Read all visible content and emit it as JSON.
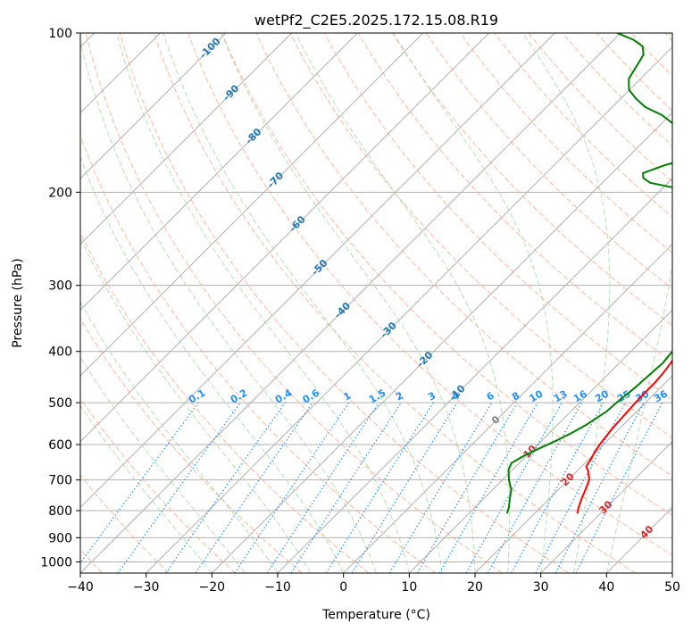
{
  "chart_data": {
    "type": "line",
    "title": "wetPf2_C2E5.2025.172.15.08.R19",
    "xlabel": "Temperature (°C)",
    "ylabel": "Pressure (hPa)",
    "xlim": [
      -40,
      50
    ],
    "ylim": [
      1050,
      100
    ],
    "y_scale": "log",
    "grid": true,
    "x_ticks": [
      "−40",
      "−30",
      "−20",
      "−10",
      "0",
      "10",
      "20",
      "30",
      "40",
      "50"
    ],
    "y_ticks": [
      {
        "p": 100,
        "label": "100"
      },
      {
        "p": 200,
        "label": "200"
      },
      {
        "p": 300,
        "label": "300"
      },
      {
        "p": 400,
        "label": "400"
      },
      {
        "p": 500,
        "label": "500"
      },
      {
        "p": 600,
        "label": "600"
      },
      {
        "p": 700,
        "label": "700"
      },
      {
        "p": 800,
        "label": "800"
      },
      {
        "p": 900,
        "label": "900"
      },
      {
        "p": 1000,
        "label": "1000"
      }
    ],
    "colors": {
      "temperature": "#ff0000",
      "dewpoint": "#008000",
      "isotherm": "#b0b0b0",
      "dry_adiabat": "#ffa07a",
      "moist_adiabat": "#a3d9a3",
      "mixing_ratio": "#1e90ff",
      "label_isotherm_neg": "#1f77b4",
      "label_isotherm_pos": "#d62728",
      "label_isotherm_zero": "#808080",
      "label_mixing": "#1e90ff"
    },
    "series": [
      {
        "values": [
          [
            810,
            26.5
          ],
          [
            790,
            25.8
          ],
          [
            760,
            24.9
          ],
          [
            730,
            24.1
          ],
          [
            700,
            23.2
          ],
          [
            675,
            21.8
          ],
          [
            660,
            20.7
          ],
          [
            640,
            20.3
          ],
          [
            620,
            19.8
          ],
          [
            600,
            19.4
          ],
          [
            560,
            18.9
          ],
          [
            530,
            18.7
          ],
          [
            500,
            18.5
          ],
          [
            480,
            18.4
          ],
          [
            460,
            18.4
          ],
          [
            440,
            18.2
          ],
          [
            420,
            17.8
          ],
          [
            400,
            17.3
          ],
          [
            385,
            16.8
          ],
          [
            370,
            16.5
          ],
          [
            350,
            15.6
          ],
          [
            330,
            14.3
          ],
          [
            300,
            12.4
          ],
          [
            270,
            10.0
          ],
          [
            250,
            7.8
          ],
          [
            235,
            5.6
          ],
          [
            225,
            3.2
          ],
          [
            215,
            0.2
          ],
          [
            207,
            -2.4
          ],
          [
            200,
            -3.5
          ],
          [
            193,
            -1.2
          ],
          [
            186,
            2.4
          ],
          [
            178,
            6.3
          ],
          [
            172,
            9.2
          ],
          [
            165,
            10.4
          ],
          [
            160,
            10.2
          ],
          [
            150,
            7.4
          ],
          [
            140,
            4.2
          ],
          [
            130,
            1.3
          ],
          [
            120,
            -1.6
          ],
          [
            110,
            -4.4
          ],
          [
            100,
            -7.4
          ]
        ]
      },
      {
        "values": [
          [
            810,
            15.8
          ],
          [
            790,
            15.2
          ],
          [
            760,
            14.0
          ],
          [
            730,
            12.8
          ],
          [
            700,
            11.0
          ],
          [
            670,
            9.4
          ],
          [
            650,
            8.8
          ],
          [
            630,
            9.6
          ],
          [
            610,
            10.8
          ],
          [
            590,
            12.2
          ],
          [
            570,
            13.4
          ],
          [
            550,
            14.4
          ],
          [
            520,
            15.4
          ],
          [
            500,
            15.6
          ],
          [
            470,
            16.1
          ],
          [
            450,
            16.3
          ],
          [
            420,
            16.6
          ],
          [
            400,
            16.3
          ],
          [
            385,
            16.2
          ],
          [
            370,
            16.0
          ],
          [
            350,
            15.1
          ],
          [
            330,
            13.7
          ],
          [
            300,
            11.8
          ],
          [
            270,
            9.6
          ],
          [
            250,
            7.5
          ],
          [
            235,
            5.7
          ],
          [
            225,
            4.0
          ],
          [
            215,
            1.7
          ],
          [
            207,
            0.0
          ],
          [
            203,
            -1.2
          ],
          [
            200,
            -4.5
          ],
          [
            196,
            -8.5
          ],
          [
            192,
            -12.7
          ],
          [
            188,
            -14.5
          ],
          [
            184,
            -15.3
          ],
          [
            178,
            -13.3
          ],
          [
            173,
            -10.7
          ],
          [
            168,
            -9.9
          ],
          [
            163,
            -11.0
          ],
          [
            157,
            -13.6
          ],
          [
            150,
            -17.4
          ],
          [
            143,
            -21.2
          ],
          [
            138,
            -25.0
          ],
          [
            133,
            -27.7
          ],
          [
            128,
            -30.1
          ],
          [
            122,
            -31.8
          ],
          [
            115,
            -32.6
          ],
          [
            110,
            -33.2
          ],
          [
            106,
            -34.6
          ],
          [
            103,
            -37.0
          ],
          [
            100,
            -40.5
          ]
        ]
      }
    ],
    "isotherm_labels": [
      {
        "t": -100,
        "text": "-100",
        "p": 107
      },
      {
        "t": -90,
        "text": "-90",
        "p": 130
      },
      {
        "t": -80,
        "text": "-80",
        "p": 157
      },
      {
        "t": -70,
        "text": "-70",
        "p": 190
      },
      {
        "t": -60,
        "text": "-60",
        "p": 230
      },
      {
        "t": -50,
        "text": "-50",
        "p": 278
      },
      {
        "t": -40,
        "text": "-40",
        "p": 335
      },
      {
        "t": -30,
        "text": "-30",
        "p": 365
      },
      {
        "t": -20,
        "text": "-20",
        "p": 415
      },
      {
        "t": -10,
        "text": "-10",
        "p": 480
      },
      {
        "t": 0,
        "text": "0",
        "p": 540
      },
      {
        "t": 10,
        "text": "10",
        "p": 620
      },
      {
        "t": 20,
        "text": "20",
        "p": 700
      },
      {
        "t": 30,
        "text": "30",
        "p": 790
      },
      {
        "t": 40,
        "text": "40",
        "p": 880
      }
    ],
    "mixing_ratio_labels": [
      "0.1",
      "0.2",
      "0.4",
      "0.6",
      "1",
      "1.5",
      "2",
      "3",
      "4",
      "6",
      "8",
      "10",
      "13",
      "16",
      "20",
      "25",
      "30",
      "36"
    ]
  }
}
